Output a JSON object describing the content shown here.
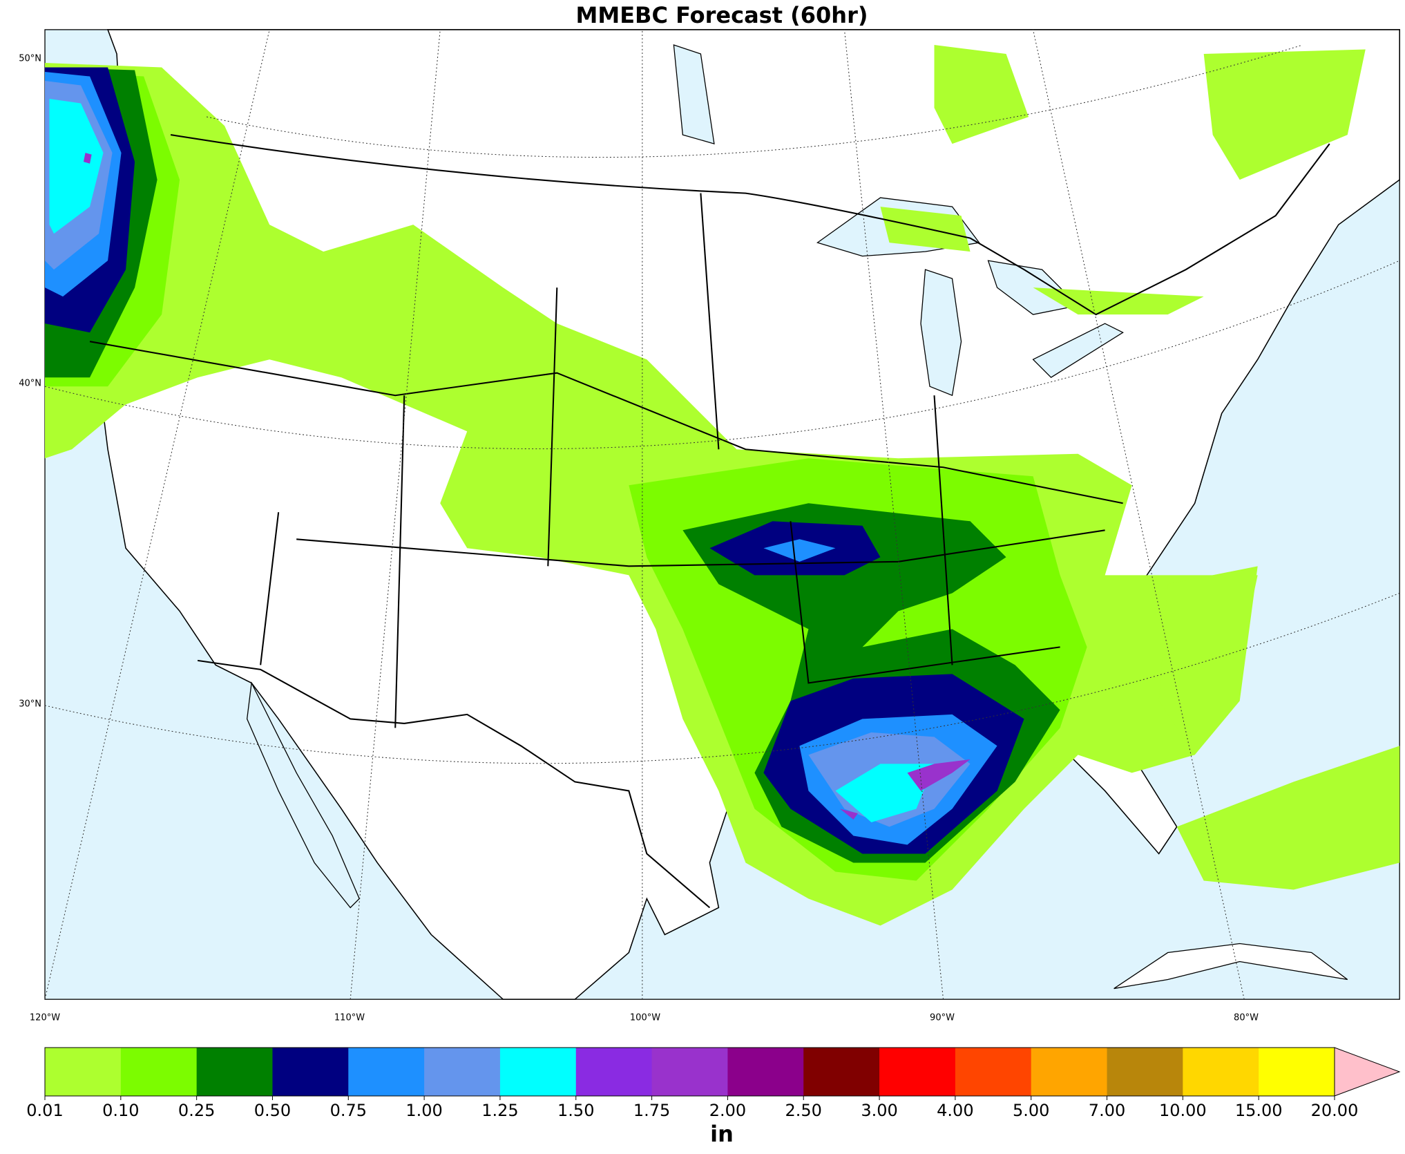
{
  "chart_data": {
    "type": "colorbar",
    "title": "MMEBC Forecast (60hr)",
    "lat_labels": [
      "50°N",
      "40°N",
      "30°N"
    ],
    "lon_labels": [
      "120°W",
      "110°W",
      "100°W",
      "90°W",
      "80°W"
    ],
    "levels": [
      {
        "value": 0.01,
        "label": "0.01"
      },
      {
        "value": 0.1,
        "label": "0.10"
      },
      {
        "value": 0.25,
        "label": "0.25"
      },
      {
        "value": 0.5,
        "label": "0.50"
      },
      {
        "value": 0.75,
        "label": "0.75"
      },
      {
        "value": 1,
        "label": "1.00"
      },
      {
        "value": 1.25,
        "label": "1.25"
      },
      {
        "value": 1.5,
        "label": "1.50"
      },
      {
        "value": 1.75,
        "label": "1.75"
      },
      {
        "value": 2,
        "label": "2.00"
      },
      {
        "value": 2.5,
        "label": "2.50"
      },
      {
        "value": 3,
        "label": "3.00"
      },
      {
        "value": 4,
        "label": "4.00"
      },
      {
        "value": 5,
        "label": "5.00"
      },
      {
        "value": 7,
        "label": "7.00"
      },
      {
        "value": 10,
        "label": "10.00"
      },
      {
        "value": 15,
        "label": "15.00"
      },
      {
        "value": 20,
        "label": "20.00"
      }
    ],
    "colors": [
      "#adff2f",
      "#7cfc00",
      "#008000",
      "#000080",
      "#1e90ff",
      "#6495ed",
      "#00ffff",
      "#8a2be2",
      "#9932cc",
      "#8b008b",
      "#800000",
      "#ff0000",
      "#ff4500",
      "#ffa500",
      "#b8860b",
      "#ffd700",
      "#ffff00"
    ],
    "extend_color": "#ffc0cb",
    "unit": "in"
  }
}
